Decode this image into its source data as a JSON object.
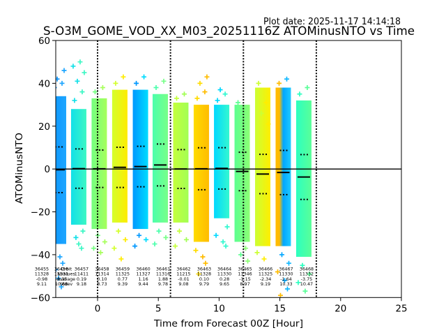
{
  "chart_data": {
    "type": "scatter",
    "title": "S-O3M_GOME_VOD_XX_M03_20251116Z ATOMinusNTO vs Time",
    "plot_date": "Plot date: 2025-11-17 14:14:18",
    "xlabel": "Time from Forecast 00Z [Hour]",
    "ylabel": "ATOMinusNTO",
    "xlim": [
      -3.44,
      25
    ],
    "ylim": [
      -60,
      60
    ],
    "grid": false,
    "xticks": {
      "values": [
        0,
        5,
        10,
        15,
        20,
        25
      ],
      "labels": [
        "0",
        "5",
        "10",
        "15",
        "20",
        "25"
      ]
    },
    "yticks": {
      "values": [
        60,
        40,
        20,
        0,
        -20,
        -40,
        -60
      ],
      "labels": [
        "60",
        "40",
        "20",
        "0",
        "−20",
        "−40",
        "−60"
      ]
    },
    "vertical_dotted_lines_hr": [
      0,
      6,
      12,
      18
    ],
    "zero_line": 0,
    "stats_legend": [
      "Orbit",
      "Nvalues",
      "Average",
      "Stdev"
    ],
    "orbits": [
      {
        "orbit": "36455",
        "nvalues": "11328",
        "average": "-0.98",
        "stdev": "9.11",
        "x_hr": -4.82
      },
      {
        "orbit": "36456",
        "nvalues": "11331",
        "average": "-0.35",
        "stdev": "10.68",
        "x_hr": -3.21,
        "colors": [
          "#0a94ff",
          "#1ea6ff"
        ],
        "core": [
          -35,
          34
        ],
        "outliers_high": [
          38,
          40,
          42,
          46
        ],
        "outliers_low": [
          -38,
          -41,
          -44,
          -47,
          -51,
          -55,
          -58
        ]
      },
      {
        "orbit": "36457",
        "nvalues": "11411",
        "average": "0.19",
        "stdev": "9.18",
        "x_hr": -1.55,
        "colors": [
          "#12e0e8",
          "#3cf7c4"
        ],
        "core": [
          -26,
          28
        ],
        "outliers_high": [
          32,
          36,
          41,
          45,
          48,
          50
        ],
        "outliers_low": [
          -29,
          -32,
          -35,
          -37
        ]
      },
      {
        "orbit": "36458",
        "nvalues": "11314",
        "average": "0.10",
        "stdev": "8.73",
        "x_hr": 0.14,
        "colors": [
          "#74ff80",
          "#a6ff5a"
        ],
        "core": [
          -28,
          33
        ],
        "outliers_high": [
          36,
          38
        ],
        "outliers_low": [
          -31,
          -34,
          -37,
          -39
        ]
      },
      {
        "orbit": "36459",
        "nvalues": "11325",
        "average": "0.77",
        "stdev": "9.39",
        "x_hr": 1.83,
        "colors": [
          "#d4ff2e",
          "#ffec00"
        ],
        "core": [
          -25,
          37
        ],
        "outliers_high": [
          40,
          43
        ],
        "outliers_low": [
          -29,
          -33,
          -37,
          -42
        ]
      },
      {
        "orbit": "36460",
        "nvalues": "11327",
        "average": "1.16",
        "stdev": "9.44",
        "x_hr": 3.53,
        "colors": [
          "#0098ff",
          "#00dcff"
        ],
        "core": [
          -28,
          37
        ],
        "outliers_high": [
          40,
          43
        ],
        "outliers_low": [
          -31,
          -33,
          -36
        ]
      },
      {
        "orbit": "36461",
        "nvalues": "11316",
        "average": "1.88",
        "stdev": "9.78",
        "x_hr": 5.16,
        "colors": [
          "#4cffac",
          "#78ff88"
        ],
        "core": [
          -25,
          35
        ],
        "outliers_high": [
          38,
          41
        ],
        "outliers_low": [
          -29,
          -32,
          -35
        ]
      },
      {
        "orbit": "36462",
        "nvalues": "11215",
        "average": "-0.01",
        "stdev": "9.08",
        "x_hr": 6.85,
        "colors": [
          "#c4ff3c",
          "#a2ff54"
        ],
        "core": [
          -25,
          31
        ],
        "outliers_high": [
          33,
          35
        ],
        "outliers_low": [
          -29,
          -33,
          -36
        ]
      },
      {
        "orbit": "36463",
        "nvalues": "11328",
        "average": "0.10",
        "stdev": "9.79",
        "x_hr": 8.54,
        "colors": [
          "#ffdc00",
          "#ffbc00"
        ],
        "core": [
          -34,
          30
        ],
        "outliers_high": [
          33,
          36,
          40,
          43
        ],
        "outliers_low": [
          -38,
          -41,
          -44,
          -49
        ]
      },
      {
        "orbit": "36464",
        "nvalues": "11330",
        "average": "0.28",
        "stdev": "9.65",
        "x_hr": 10.21,
        "colors": [
          "#00d8ff",
          "#34f8d0"
        ],
        "core": [
          -23,
          30
        ],
        "outliers_high": [
          32,
          35,
          37
        ],
        "outliers_low": [
          -27,
          -31,
          -34,
          -36
        ]
      },
      {
        "orbit": "36465",
        "nvalues": "11346",
        "average": "-1.15",
        "stdev": "8.97",
        "x_hr": 11.9,
        "colors": [
          "#5cff90",
          "#8cff74"
        ],
        "core": [
          -34,
          30
        ],
        "outliers_high": [
          31
        ],
        "outliers_low": [
          -37,
          -40,
          -43
        ]
      },
      {
        "orbit": "36466",
        "nvalues": "11325",
        "average": "-2.34",
        "stdev": "9.19",
        "x_hr": 13.59,
        "colors": [
          "#ccff34",
          "#ffee00"
        ],
        "core": [
          -36,
          38
        ],
        "outliers_high": [
          40,
          31,
          26,
          21
        ],
        "outliers_low": [
          -39,
          -42
        ]
      },
      {
        "orbit": "36467",
        "nvalues": "11330",
        "average": "-1.64",
        "stdev": "10.33",
        "x_hr": 15.28,
        "colors": [
          "#ffbb00",
          "#ffbb00",
          "#00a6ff",
          "#10b8ff",
          "#20ccff"
        ],
        "core": [
          -36,
          38
        ],
        "outliers_high": [
          40,
          42
        ],
        "outliers_low": [
          -40,
          -44,
          -48,
          -52,
          -56,
          -59
        ]
      },
      {
        "orbit": "36468",
        "nvalues": "11332",
        "average": "-3.75",
        "stdev": "10.47",
        "x_hr": 16.97,
        "colors": [
          "#2cffc0",
          "#5aff98"
        ],
        "core": [
          -41,
          32
        ],
        "outliers_high": [
          35,
          38
        ],
        "outliers_low": [
          -45,
          -49,
          -53,
          -57
        ]
      }
    ]
  }
}
